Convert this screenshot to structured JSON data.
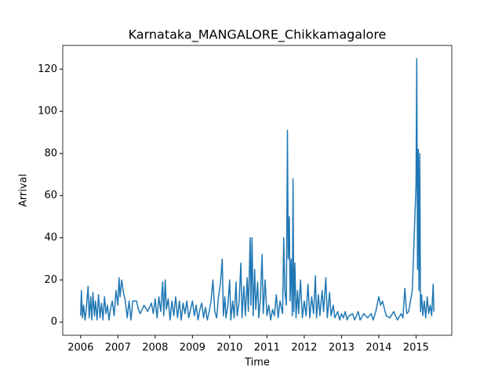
{
  "chart_data": {
    "type": "line",
    "title": "Karnataka_MANGALORE_Chikkamagalore",
    "xlabel": "Time",
    "ylabel": "Arrival",
    "color": "#1f77b4",
    "x": [
      2006.0,
      2006.02,
      2006.05,
      2006.08,
      2006.12,
      2006.15,
      2006.2,
      2006.23,
      2006.27,
      2006.3,
      2006.33,
      2006.37,
      2006.4,
      2006.44,
      2006.48,
      2006.52,
      2006.56,
      2006.6,
      2006.64,
      2006.68,
      2006.72,
      2006.76,
      2006.8,
      2006.85,
      2006.9,
      2006.95,
      2007.0,
      2007.03,
      2007.06,
      2007.1,
      2007.15,
      2007.2,
      2007.25,
      2007.3,
      2007.35,
      2007.4,
      2007.5,
      2007.55,
      2007.6,
      2007.7,
      2007.8,
      2007.9,
      2007.95,
      2008.0,
      2008.05,
      2008.1,
      2008.15,
      2008.2,
      2008.23,
      2008.27,
      2008.3,
      2008.35,
      2008.4,
      2008.45,
      2008.5,
      2008.55,
      2008.6,
      2008.65,
      2008.7,
      2008.75,
      2008.8,
      2008.85,
      2008.9,
      2008.95,
      2009.0,
      2009.05,
      2009.1,
      2009.15,
      2009.2,
      2009.25,
      2009.3,
      2009.35,
      2009.4,
      2009.45,
      2009.5,
      2009.55,
      2009.6,
      2009.65,
      2009.7,
      2009.75,
      2009.8,
      2009.83,
      2009.87,
      2009.9,
      2009.95,
      2010.0,
      2010.03,
      2010.08,
      2010.12,
      2010.17,
      2010.2,
      2010.25,
      2010.3,
      2010.33,
      2010.38,
      2010.42,
      2010.47,
      2010.5,
      2010.55,
      2010.57,
      2010.6,
      2010.63,
      2010.67,
      2010.7,
      2010.75,
      2010.78,
      2010.82,
      2010.87,
      2010.9,
      2010.95,
      2011.0,
      2011.05,
      2011.1,
      2011.15,
      2011.2,
      2011.25,
      2011.3,
      2011.35,
      2011.42,
      2011.45,
      2011.48,
      2011.52,
      2011.55,
      2011.57,
      2011.6,
      2011.62,
      2011.65,
      2011.68,
      2011.7,
      2011.72,
      2011.75,
      2011.78,
      2011.82,
      2011.85,
      2011.9,
      2011.95,
      2012.0,
      2012.05,
      2012.1,
      2012.15,
      2012.2,
      2012.25,
      2012.3,
      2012.33,
      2012.38,
      2012.42,
      2012.48,
      2012.52,
      2012.58,
      2012.62,
      2012.68,
      2012.72,
      2012.78,
      2012.82,
      2012.9,
      2012.95,
      2013.0,
      2013.05,
      2013.1,
      2013.15,
      2013.2,
      2013.3,
      2013.35,
      2013.45,
      2013.5,
      2013.6,
      2013.7,
      2013.8,
      2013.85,
      2013.92,
      2014.0,
      2014.05,
      2014.1,
      2014.2,
      2014.3,
      2014.4,
      2014.5,
      2014.6,
      2014.65,
      2014.7,
      2014.75,
      2014.8,
      2014.9,
      2015.0,
      2015.02,
      2015.04,
      2015.06,
      2015.08,
      2015.1,
      2015.12,
      2015.15,
      2015.18,
      2015.22,
      2015.26,
      2015.3,
      2015.34,
      2015.38,
      2015.42,
      2015.46,
      2015.48
    ],
    "values": [
      3,
      15,
      2,
      8,
      1,
      6,
      17,
      2,
      12,
      1,
      14,
      3,
      10,
      1,
      13,
      2,
      9,
      1,
      12,
      4,
      8,
      1,
      6,
      10,
      3,
      15,
      8,
      21,
      12,
      20,
      14,
      10,
      2,
      10,
      1,
      10,
      10,
      6,
      4,
      8,
      5,
      9,
      4,
      11,
      2,
      12,
      5,
      19,
      3,
      20,
      6,
      11,
      1,
      10,
      3,
      12,
      2,
      10,
      1,
      9,
      4,
      10,
      2,
      6,
      10,
      3,
      8,
      1,
      6,
      9,
      2,
      7,
      1,
      5,
      10,
      20,
      5,
      2,
      12,
      18,
      30,
      3,
      12,
      2,
      8,
      20,
      1,
      10,
      2,
      19,
      3,
      9,
      28,
      2,
      17,
      3,
      21,
      5,
      40,
      8,
      40,
      3,
      25,
      6,
      19,
      2,
      10,
      32,
      4,
      20,
      3,
      8,
      1,
      6,
      3,
      13,
      2,
      10,
      4,
      40,
      15,
      8,
      91,
      30,
      50,
      10,
      30,
      3,
      68,
      5,
      28,
      2,
      15,
      4,
      20,
      2,
      10,
      3,
      18,
      2,
      12,
      4,
      22,
      2,
      13,
      3,
      15,
      5,
      21,
      2,
      14,
      3,
      8,
      2,
      5,
      1,
      4,
      2,
      5,
      1,
      3,
      4,
      1,
      5,
      1,
      4,
      2,
      4,
      1,
      5,
      12,
      8,
      10,
      3,
      2,
      5,
      1,
      4,
      2,
      16,
      4,
      5,
      15,
      65,
      125,
      25,
      82,
      15,
      80,
      5,
      13,
      3,
      10,
      2,
      12,
      4,
      8,
      3,
      18,
      5
    ],
    "xlim": [
      2005.52,
      2015.96
    ],
    "ylim": [
      -6.25,
      131.25
    ],
    "xticks": [
      2006,
      2007,
      2008,
      2009,
      2010,
      2011,
      2012,
      2013,
      2014,
      2015
    ],
    "yticks": [
      0,
      20,
      40,
      60,
      80,
      100,
      120
    ]
  }
}
